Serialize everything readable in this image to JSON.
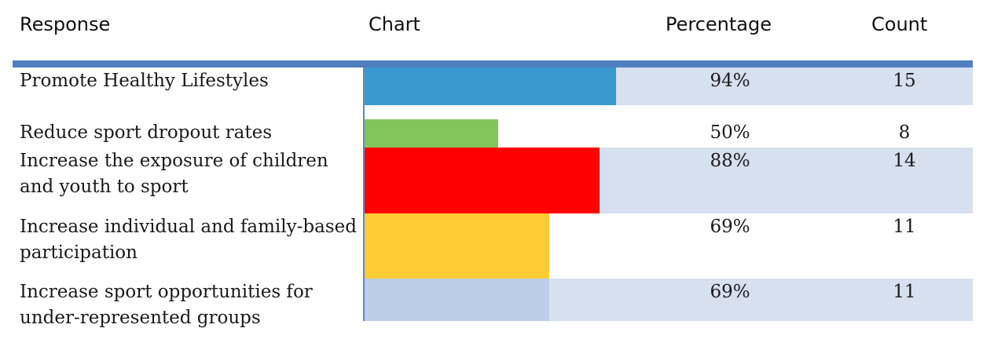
{
  "header": {
    "response": "Response",
    "chart": "Chart",
    "percentage": "Percentage",
    "count": "Count"
  },
  "chart_data": {
    "type": "bar",
    "orientation": "horizontal",
    "categories": [
      "Promote Healthy Lifestyles",
      "Reduce sport dropout rates",
      "Increase the exposure of children and youth to sport",
      "Increase individual and family-based participation",
      "Increase sport opportunities for under-represented groups"
    ],
    "values": [
      94,
      50,
      88,
      69,
      69
    ],
    "counts": [
      15,
      8,
      14,
      11,
      11
    ],
    "labels": [
      "94%",
      "50%",
      "88%",
      "69%",
      "69%"
    ],
    "count_labels": [
      "15",
      "8",
      "14",
      "11",
      "11"
    ],
    "colors": [
      "#3a99cf",
      "#82c65b",
      "#ff0000",
      "#ffcb33",
      "#bccde9"
    ],
    "banded": [
      true,
      false,
      true,
      false,
      true
    ],
    "xlim": [
      0,
      100
    ],
    "band_color": "#d7e0ef",
    "rule_color": "#4f7fbf"
  },
  "rows": [
    {
      "response": "Promote Healthy Lifestyles",
      "percentage": "94%",
      "count": "15"
    },
    {
      "response": "Reduce sport dropout rates",
      "percentage": "50%",
      "count": "8"
    },
    {
      "response": "Increase the exposure of children and youth to sport",
      "percentage": "88%",
      "count": "14"
    },
    {
      "response": "Increase individual and family-based participation",
      "percentage": "69%",
      "count": "11"
    },
    {
      "response": "Increase sport opportunities for under-represented groups",
      "percentage": "69%",
      "count": "11"
    }
  ]
}
